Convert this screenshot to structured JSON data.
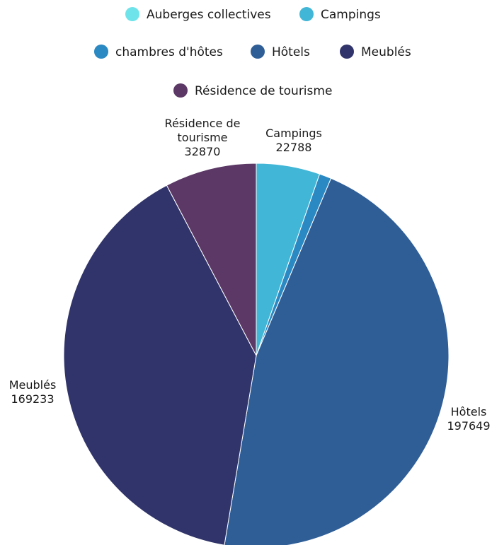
{
  "chart_data": {
    "type": "pie",
    "title": "",
    "legend_position": "top",
    "slices": [
      {
        "label": "Auberges collectives",
        "value": 0,
        "color": "#6fe3ea",
        "data_label": ""
      },
      {
        "label": "Campings",
        "value": 22788,
        "color": "#41b6d6",
        "data_label": "Campings\n22788"
      },
      {
        "label": "chambres d'hôtes",
        "value": 4300,
        "color": "#2a88c2",
        "data_label": ""
      },
      {
        "label": "Hôtels",
        "value": 197649,
        "color": "#2f5e97",
        "data_label": "Hôtels\n197649"
      },
      {
        "label": "Meublés",
        "value": 169233,
        "color": "#30346a",
        "data_label": "Meublés\n169233"
      },
      {
        "label": "Résidence de tourisme",
        "value": 32870,
        "color": "#5b3866",
        "data_label": "Résidence de\ntourisme\n32870"
      }
    ]
  }
}
